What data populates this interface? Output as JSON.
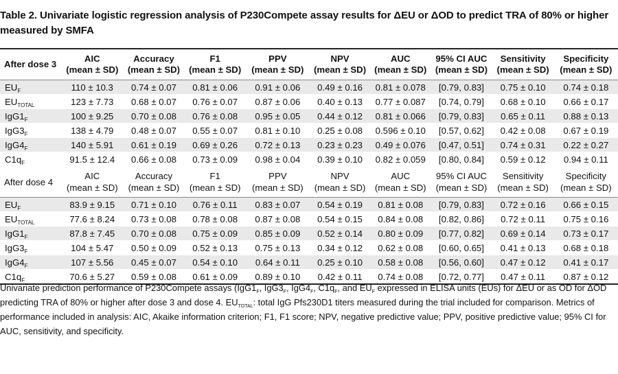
{
  "title": "Table 2. Univariate logistic regression analysis of P230Compete assay results for ΔEU or ΔOD to predict TRA of 80% or higher measured by SMFA",
  "columns": {
    "aic": [
      "AIC",
      "(mean ± SD)"
    ],
    "accuracy": [
      "Accuracy",
      "(mean ± SD)"
    ],
    "f1": [
      "F1",
      "(mean ± SD)"
    ],
    "ppv": [
      "PPV",
      "(mean ± SD)"
    ],
    "npv": [
      "NPV",
      "(mean ± SD)"
    ],
    "auc": [
      "AUC",
      "(mean ± SD)"
    ],
    "ci_auc": [
      "95% CI AUC",
      "(mean ± SD)"
    ],
    "sensitivity": [
      "Sensitivity",
      "(mean ± SD)"
    ],
    "specificity": [
      "Specificity",
      "(mean ± SD)"
    ]
  },
  "groups": [
    {
      "label": "After dose 3",
      "rows": [
        {
          "name": "EU",
          "sub": "F",
          "values": [
            "110 ± 10.3",
            "0.74 ± 0.07",
            "0.81 ± 0.06",
            "0.91 ± 0.06",
            "0.49 ± 0.16",
            "0.81 ± 0.078",
            "[0.79, 0.83]",
            "0.75 ± 0.10",
            "0.74 ± 0.18"
          ]
        },
        {
          "name": "EU",
          "sub": "TOTAL",
          "values": [
            "123 ± 7.73",
            "0.68 ± 0.07",
            "0.76 ± 0.07",
            "0.87 ± 0.06",
            "0.40 ± 0.13",
            "0.77 ± 0.087",
            "[0.74, 0.79]",
            "0.68 ± 0.10",
            "0.66 ± 0.17"
          ]
        },
        {
          "name": "IgG1",
          "sub": "F",
          "values": [
            "100 ± 9.25",
            "0.70 ± 0.08",
            "0.76 ± 0.08",
            "0.95 ± 0.05",
            "0.44 ± 0.12",
            "0.81 ± 0.066",
            "[0.79, 0.83]",
            "0.65 ± 0.11",
            "0.88 ± 0.13"
          ]
        },
        {
          "name": "IgG3",
          "sub": "F",
          "values": [
            "138 ± 4.79",
            "0.48 ± 0.07",
            "0.55 ± 0.07",
            "0.81 ± 0.10",
            "0.25 ± 0.08",
            "0.596 ± 0.10",
            "[0.57, 0.62]",
            "0.42 ± 0.08",
            "0.67 ± 0.19"
          ]
        },
        {
          "name": "IgG4",
          "sub": "F",
          "values": [
            "140 ± 5.91",
            "0.61 ± 0.19",
            "0.69 ± 0.26",
            "0.72 ± 0.13",
            "0.23 ± 0.23",
            "0.49 ± 0.076",
            "[0.47, 0.51]",
            "0.74 ± 0.31",
            "0.22 ± 0.27"
          ]
        },
        {
          "name": "C1q",
          "sub": "F",
          "values": [
            "91.5 ± 12.4",
            "0.66 ± 0.08",
            "0.73 ± 0.09",
            "0.98 ± 0.04",
            "0.39 ± 0.10",
            "0.82 ± 0.059",
            "[0.80, 0.84]",
            "0.59 ± 0.12",
            "0.94 ± 0.11"
          ]
        }
      ]
    },
    {
      "label": "After dose 4",
      "rows": [
        {
          "name": "EU",
          "sub": "F",
          "values": [
            "83.9 ± 9.15",
            "0.71 ± 0.10",
            "0.76 ± 0.11",
            "0.83 ± 0.07",
            "0.54 ± 0.19",
            "0.81 ± 0.08",
            "[0.79, 0.83]",
            "0.72 ± 0.16",
            "0.66 ± 0.15"
          ]
        },
        {
          "name": "EU",
          "sub": "TOTAL",
          "values": [
            "77.6 ± 8.24",
            "0.73 ± 0.08",
            "0.78 ± 0.08",
            "0.87 ± 0.08",
            "0.54 ± 0.15",
            "0.84 ± 0.08",
            "[0.82, 0.86]",
            "0.72 ± 0.11",
            "0.75 ± 0.16"
          ]
        },
        {
          "name": "IgG1",
          "sub": "F",
          "values": [
            "87.8 ± 7.45",
            "0.70 ± 0.08",
            "0.75 ± 0.09",
            "0.85 ± 0.09",
            "0.52 ± 0.14",
            "0.80 ± 0.09",
            "[0.77, 0.82]",
            "0.69 ± 0.14",
            "0.73 ± 0.17"
          ]
        },
        {
          "name": "IgG3",
          "sub": "F",
          "values": [
            "104 ± 5.47",
            "0.50 ± 0.09",
            "0.52 ± 0.13",
            "0.75 ± 0.13",
            "0.34 ± 0.12",
            "0.62 ± 0.08",
            "[0.60, 0.65]",
            "0.41 ± 0.13",
            "0.68 ± 0.18"
          ]
        },
        {
          "name": "IgG4",
          "sub": "F",
          "values": [
            "107 ± 5.56",
            "0.45 ± 0.07",
            "0.54 ± 0.10",
            "0.64 ± 0.11",
            "0.25 ± 0.10",
            "0.58 ± 0.08",
            "[0.56, 0.60]",
            "0.47 ± 0.12",
            "0.41 ± 0.17"
          ]
        },
        {
          "name": "C1q",
          "sub": "F",
          "values": [
            "70.6 ± 5.27",
            "0.59 ± 0.08",
            "0.61 ± 0.09",
            "0.89 ± 0.10",
            "0.42 ± 0.11",
            "0.74 ± 0.08",
            "[0.72, 0.77]",
            "0.47 ± 0.11",
            "0.87 ± 0.12"
          ]
        }
      ]
    }
  ],
  "note": {
    "t1": "Univariate prediction performance of P230Compete assays (IgG1",
    "s1": "F",
    "t2": ", IgG3",
    "s2": "F",
    "t3": ", IgG4",
    "s3": "F",
    "t4": ", C1q",
    "s4": "F",
    "t5": ", and EU",
    "s5": "F",
    "t6": " expressed in ELISA units (EUs) for ΔEU or as OD for ΔOD predicting TRA of 80% or higher after dose 3 and dose 4. EU",
    "s6": "TOTAL",
    "t7": ": total IgG Pfs230D1 titers measured during the trial included for comparison. Metrics of performance included in analysis: AIC, Akaike information criterion; F1, F1 score; NPV, negative predictive value; PPV, positive predictive value; 95% CI for AUC, sensitivity, and specificity."
  },
  "colors": {
    "row_shade": "#e9e9ea",
    "rule": "#222222"
  }
}
